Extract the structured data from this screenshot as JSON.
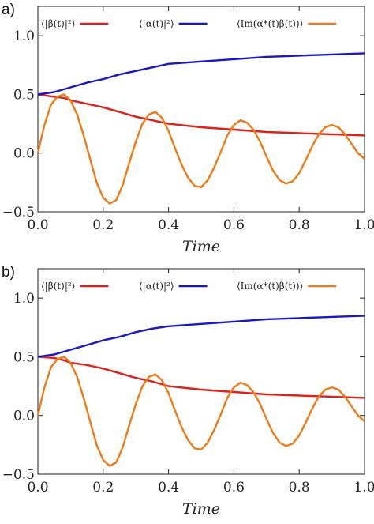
{
  "panels": [
    {
      "label": "a)",
      "chart_data": {
        "type": "line",
        "xlabel": "Time",
        "ylabel": "",
        "xlim": [
          0.0,
          1.0
        ],
        "ylim": [
          -0.5,
          1.25
        ],
        "xticks": [
          "0.0",
          "0.2",
          "0.4",
          "0.6",
          "0.8",
          "1.0"
        ],
        "yticks": [
          "−0.5",
          "0.0",
          "0.5",
          "1.0"
        ],
        "legend_position": "top",
        "series": [
          {
            "name": "⟨|β(t)|²⟩",
            "color": "#e0201b",
            "x": [
              0.0,
              0.05,
              0.08,
              0.1,
              0.15,
              0.2,
              0.25,
              0.3,
              0.35,
              0.4,
              0.5,
              0.6,
              0.7,
              0.8,
              0.9,
              1.0
            ],
            "y": [
              0.5,
              0.48,
              0.47,
              0.45,
              0.42,
              0.39,
              0.35,
              0.31,
              0.28,
              0.25,
              0.22,
              0.2,
              0.18,
              0.17,
              0.16,
              0.15
            ]
          },
          {
            "name": "⟨|α(t)|²⟩",
            "color": "#1818c8",
            "x": [
              0.0,
              0.05,
              0.1,
              0.15,
              0.2,
              0.25,
              0.3,
              0.35,
              0.4,
              0.5,
              0.6,
              0.7,
              0.8,
              0.9,
              1.0
            ],
            "y": [
              0.5,
              0.52,
              0.56,
              0.6,
              0.63,
              0.67,
              0.7,
              0.73,
              0.76,
              0.78,
              0.8,
              0.82,
              0.83,
              0.84,
              0.85
            ]
          },
          {
            "name": "⟨Im(α*(t)β(t))⟩",
            "color": "#ee7a19",
            "x": [
              0.0,
              0.02,
              0.04,
              0.06,
              0.08,
              0.1,
              0.12,
              0.14,
              0.16,
              0.18,
              0.2,
              0.22,
              0.24,
              0.26,
              0.28,
              0.3,
              0.32,
              0.34,
              0.36,
              0.38,
              0.4,
              0.42,
              0.44,
              0.46,
              0.48,
              0.5,
              0.52,
              0.54,
              0.56,
              0.58,
              0.6,
              0.62,
              0.64,
              0.66,
              0.68,
              0.7,
              0.72,
              0.74,
              0.76,
              0.78,
              0.8,
              0.82,
              0.84,
              0.86,
              0.88,
              0.9,
              0.92,
              0.94,
              0.96,
              0.98,
              1.0
            ],
            "y": [
              0.0,
              0.24,
              0.41,
              0.48,
              0.5,
              0.45,
              0.33,
              0.15,
              -0.05,
              -0.25,
              -0.38,
              -0.43,
              -0.4,
              -0.27,
              -0.08,
              0.1,
              0.25,
              0.33,
              0.35,
              0.3,
              0.19,
              0.04,
              -0.1,
              -0.21,
              -0.28,
              -0.29,
              -0.23,
              -0.12,
              0.01,
              0.15,
              0.24,
              0.28,
              0.26,
              0.2,
              0.1,
              -0.03,
              -0.15,
              -0.23,
              -0.26,
              -0.24,
              -0.17,
              -0.06,
              0.06,
              0.16,
              0.22,
              0.24,
              0.22,
              0.16,
              0.08,
              0.0,
              -0.05
            ]
          }
        ]
      }
    },
    {
      "label": "b)",
      "chart_data": {
        "type": "line",
        "xlabel": "Time",
        "ylabel": "",
        "xlim": [
          0.0,
          1.0
        ],
        "ylim": [
          -0.5,
          1.25
        ],
        "xticks": [
          "0.0",
          "0.2",
          "0.4",
          "0.6",
          "0.8",
          "1.0"
        ],
        "yticks": [
          "−0.5",
          "0.0",
          "0.5",
          "1.0"
        ],
        "legend_position": "top",
        "series": [
          {
            "name": "⟨|β(t)|²⟩",
            "color": "#e0201b",
            "x": [
              0.0,
              0.05,
              0.08,
              0.1,
              0.15,
              0.2,
              0.25,
              0.3,
              0.35,
              0.4,
              0.5,
              0.6,
              0.7,
              0.8,
              0.9,
              1.0
            ],
            "y": [
              0.5,
              0.49,
              0.47,
              0.45,
              0.43,
              0.4,
              0.36,
              0.32,
              0.29,
              0.25,
              0.22,
              0.2,
              0.18,
              0.17,
              0.16,
              0.15
            ]
          },
          {
            "name": "⟨|α(t)|²⟩",
            "color": "#1818c8",
            "x": [
              0.0,
              0.05,
              0.1,
              0.15,
              0.2,
              0.25,
              0.3,
              0.35,
              0.4,
              0.5,
              0.6,
              0.7,
              0.8,
              0.9,
              1.0
            ],
            "y": [
              0.5,
              0.52,
              0.56,
              0.6,
              0.64,
              0.67,
              0.71,
              0.74,
              0.76,
              0.78,
              0.8,
              0.82,
              0.83,
              0.84,
              0.85
            ]
          },
          {
            "name": "⟨Im(α*(t)β(t))⟩",
            "color": "#ee7a19",
            "x": [
              0.0,
              0.02,
              0.04,
              0.06,
              0.08,
              0.1,
              0.12,
              0.14,
              0.16,
              0.18,
              0.2,
              0.22,
              0.24,
              0.26,
              0.28,
              0.3,
              0.32,
              0.34,
              0.36,
              0.38,
              0.4,
              0.42,
              0.44,
              0.46,
              0.48,
              0.5,
              0.52,
              0.54,
              0.56,
              0.58,
              0.6,
              0.62,
              0.64,
              0.66,
              0.68,
              0.7,
              0.72,
              0.74,
              0.76,
              0.78,
              0.8,
              0.82,
              0.84,
              0.86,
              0.88,
              0.9,
              0.92,
              0.94,
              0.96,
              0.98,
              1.0
            ],
            "y": [
              0.0,
              0.24,
              0.41,
              0.48,
              0.5,
              0.45,
              0.33,
              0.15,
              -0.05,
              -0.25,
              -0.38,
              -0.43,
              -0.4,
              -0.27,
              -0.08,
              0.1,
              0.25,
              0.33,
              0.35,
              0.3,
              0.19,
              0.04,
              -0.1,
              -0.21,
              -0.28,
              -0.29,
              -0.23,
              -0.12,
              0.01,
              0.15,
              0.24,
              0.28,
              0.26,
              0.2,
              0.1,
              -0.03,
              -0.15,
              -0.23,
              -0.26,
              -0.24,
              -0.17,
              -0.06,
              0.06,
              0.16,
              0.22,
              0.24,
              0.22,
              0.16,
              0.08,
              0.0,
              -0.05
            ]
          }
        ]
      }
    }
  ]
}
